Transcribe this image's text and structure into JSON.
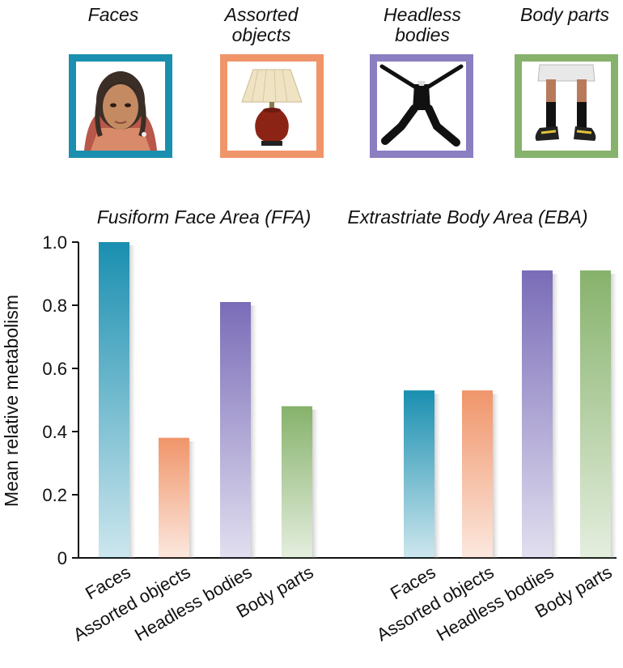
{
  "stimuli": [
    {
      "label": "Faces",
      "color": "#1a8fb0",
      "icon": "face-photo-icon"
    },
    {
      "label": "Assorted objects",
      "color": "#f0956a",
      "icon": "lamp-photo-icon"
    },
    {
      "label": "Headless bodies",
      "color": "#8b7fc2",
      "icon": "headless-body-photo-icon"
    },
    {
      "label": "Body parts",
      "color": "#86b26b",
      "icon": "legs-photo-icon"
    }
  ],
  "stimulus_labels_display": [
    [
      "Faces"
    ],
    [
      "Assorted",
      "objects"
    ],
    [
      "Headless",
      "bodies"
    ],
    [
      "Body parts"
    ]
  ],
  "chart_data": {
    "type": "bar",
    "ylabel": "Mean relative metabolism",
    "ylim": [
      0,
      1.0
    ],
    "yticks": [
      "0",
      "0.2",
      "0.4",
      "0.6",
      "0.8",
      "1.0"
    ],
    "categories": [
      "Faces",
      "Assorted objects",
      "Headless bodies",
      "Body parts"
    ],
    "groups": [
      {
        "title": "Fusiform Face Area (FFA)",
        "values": [
          1.0,
          0.38,
          0.81,
          0.48
        ]
      },
      {
        "title": "Extrastriate Body Area (EBA)",
        "values": [
          0.53,
          0.53,
          0.91,
          0.91
        ]
      }
    ],
    "colors": [
      "#1a8fb0",
      "#f0956a",
      "#7a6cb8",
      "#86b26b"
    ],
    "grid": false,
    "legend": "none"
  }
}
